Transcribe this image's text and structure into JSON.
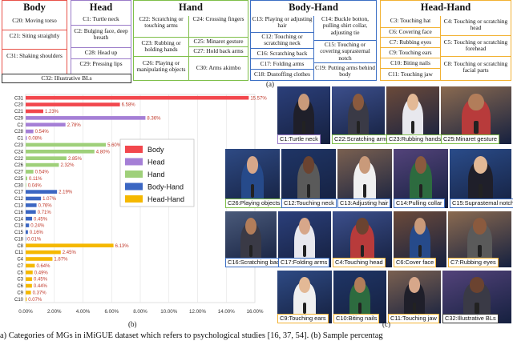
{
  "figure": {
    "label_a": "(a)",
    "label_b": "(b)",
    "label_c": "(c)",
    "caption": "a) Categories of MGs in iMiGUE dataset which refers to psychological studies [16, 37, 54]. (b) Sample percentag"
  },
  "categories": {
    "body": {
      "title": "Body",
      "color": "#e8524a",
      "items": [
        "C20: Moving torso",
        "C21: Siting straightly",
        "C31: Shaking shoulders"
      ]
    },
    "head": {
      "title": "Head",
      "color": "#9b7cc9",
      "items": [
        "C1: Turtle neck",
        "C2: Bulging face, deep breath",
        "C28: Head up",
        "C29: Pressing lips"
      ]
    },
    "hand": {
      "title": "Hand",
      "color": "#7fbf4a",
      "items": [
        "C22: Scratching or touching arms",
        "C24: Crossing fingers",
        "C23: Rubbing or holding hands",
        "C25: Minaret gesture",
        "C27: Hold back arms",
        "C26: Playing or manipulating objects",
        "C30: Arms akimbo"
      ]
    },
    "body_hand": {
      "title": "Body-Hand",
      "color": "#3c6fc4",
      "items": [
        "C13: Playing or adjusting hair",
        "C14: Buckle botton, pulling shirt collar, adjusting tie",
        "C12: Touching or scratching neck",
        "C15: Touching or covering suprasternal notch",
        "C16: Scratching back",
        "C17: Folding arms",
        "C19: Putting arms behind body",
        "C18: Dustoffing clothes"
      ]
    },
    "head_hand": {
      "title": "Head-Hand",
      "color": "#f2b233",
      "items": [
        "C3: Touching hat",
        "C4: Touching or scratching head",
        "C6: Covering face",
        "C7: Rubbing eyes",
        "C5: Touching or scratching forehead",
        "C9: Touching ears",
        "C10: Biting nails",
        "C8: Touching or scratching facial parts",
        "C11: Touching jaw"
      ]
    },
    "c32": "C32: Illustrative BLs"
  },
  "chart_data": {
    "type": "bar",
    "orientation": "horizontal",
    "categories": [
      "C31",
      "C20",
      "C21",
      "C29",
      "C2",
      "C28",
      "C1",
      "C23",
      "C24",
      "C22",
      "C26",
      "C27",
      "C25",
      "C30",
      "C17",
      "C12",
      "C13",
      "C16",
      "C14",
      "C19",
      "C15",
      "C18",
      "C8",
      "C11",
      "C4",
      "C7",
      "C5",
      "C3",
      "C6",
      "C9",
      "C10"
    ],
    "values": [
      15.57,
      6.58,
      1.23,
      8.36,
      2.78,
      0.54,
      0.08,
      5.6,
      4.8,
      2.85,
      2.32,
      0.54,
      0.11,
      0.04,
      2.19,
      1.07,
      0.76,
      0.71,
      0.45,
      0.24,
      0.16,
      0.01,
      6.13,
      2.45,
      1.87,
      0.64,
      0.49,
      0.45,
      0.44,
      0.37,
      0.07
    ],
    "value_labels": [
      "15.57%",
      "6.58%",
      "1.23%",
      "8.36%",
      "2.78%",
      "0.54%",
      "0.08%",
      "5.60%",
      "4.80%",
      "2.85%",
      "2.32%",
      "0.54%",
      "0.11%",
      "0.04%",
      "2.19%",
      "1.07%",
      "0.76%",
      "0.71%",
      "0.45%",
      "0.24%",
      "0.16%",
      "0.01%",
      "6.13%",
      "2.45%",
      "1.87%",
      "0.64%",
      "0.49%",
      "0.45%",
      "0.44%",
      "0.37%",
      "0.07%"
    ],
    "groups": [
      "Body",
      "Body",
      "Body",
      "Head",
      "Head",
      "Head",
      "Head",
      "Hand",
      "Hand",
      "Hand",
      "Hand",
      "Hand",
      "Hand",
      "Hand",
      "Body-Hand",
      "Body-Hand",
      "Body-Hand",
      "Body-Hand",
      "Body-Hand",
      "Body-Hand",
      "Body-Hand",
      "Body-Hand",
      "Head-Hand",
      "Head-Hand",
      "Head-Hand",
      "Head-Hand",
      "Head-Hand",
      "Head-Hand",
      "Head-Hand",
      "Head-Hand",
      "Head-Hand"
    ],
    "group_colors": {
      "Body": "#f2474d",
      "Head": "#a57fd6",
      "Hand": "#9fd07a",
      "Body-Hand": "#3b66c2",
      "Head-Hand": "#f5b800"
    },
    "x_ticks": [
      "0.00%",
      "2.00%",
      "4.00%",
      "6.00%",
      "8.00%",
      "10.00%",
      "12.00%",
      "14.00%",
      "16.00%"
    ],
    "xlim": [
      0,
      16
    ],
    "legend": [
      "Body",
      "Head",
      "Hand",
      "Body-Hand",
      "Head-Hand"
    ],
    "legend_position": "center-right",
    "grid": true,
    "title": "",
    "xlabel": "",
    "ylabel": ""
  },
  "thumbnails": [
    {
      "label": "C1:Turtle neck",
      "color": "#9b7cc9"
    },
    {
      "label": "C22:Scratching arms",
      "color": "#7fbf4a"
    },
    {
      "label": "C23:Rubbing hands",
      "color": "#7fbf4a"
    },
    {
      "label": "C25:Minaret gesture",
      "color": "#7fbf4a"
    },
    {
      "label": "C26:Playing objects",
      "color": "#7fbf4a"
    },
    {
      "label": "C12:Touching neck",
      "color": "#3c6fc4"
    },
    {
      "label": "C13:Adjusting hair",
      "color": "#3c6fc4"
    },
    {
      "label": "C14:Pulling collar",
      "color": "#3c6fc4"
    },
    {
      "label": "C15:Suprastemal notch",
      "color": "#3c6fc4"
    },
    {
      "label": "C16:Scratching back",
      "color": "#3c6fc4"
    },
    {
      "label": "C17:Folding arms",
      "color": "#3c6fc4"
    },
    {
      "label": "C4:Touching head",
      "color": "#f2b233"
    },
    {
      "label": "C6:Cover face",
      "color": "#f2b233"
    },
    {
      "label": "C7:Rubbing eyes",
      "color": "#f2b233"
    },
    {
      "label": "C9:Touching ears",
      "color": "#f2b233"
    },
    {
      "label": "C10:Biting nails",
      "color": "#f2b233"
    },
    {
      "label": "C11:Touching jaw",
      "color": "#f2b233"
    },
    {
      "label": "C32:Illustrative BLs",
      "color": "#333333"
    }
  ]
}
